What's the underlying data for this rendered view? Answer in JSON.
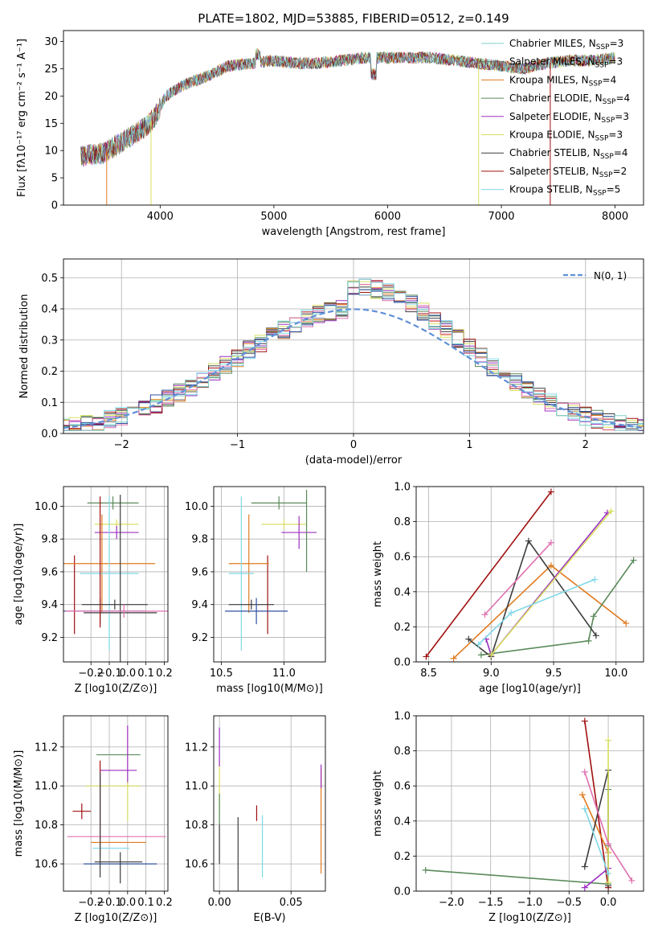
{
  "figure_title": "PLATE=1802, MJD=53885, FIBERID=0512, z=0.149",
  "colors": [
    "#7fcfc8",
    "#6a6a6a",
    "#e07a1f",
    "#5a8a5a",
    "#9b30c0",
    "#d8e060",
    "#3c3c3c",
    "#a01010",
    "#7fd8e8",
    "#e070b0",
    "#3050a0"
  ],
  "chart_data": [
    {
      "id": "spectrum",
      "type": "line",
      "xlabel": "wavelength [Angstrom, rest frame]",
      "ylabel": "Flux [fλ10⁻¹⁷ erg cm⁻² s⁻¹ A⁻¹]",
      "xlim": [
        3150,
        8250
      ],
      "ylim": [
        0,
        32
      ],
      "xticks": [
        4000,
        5000,
        6000,
        7000,
        8000
      ],
      "yticks": [
        0,
        5,
        10,
        15,
        20,
        25,
        30
      ],
      "continuum": {
        "x": [
          3300,
          3500,
          3700,
          3850,
          3950,
          4050,
          4200,
          4400,
          4600,
          4800,
          5000,
          5200,
          5400,
          5600,
          5800,
          6000,
          6200,
          6400,
          6600,
          6800,
          7000,
          7200,
          7400,
          7600,
          7800,
          8000
        ],
        "y": [
          9,
          9.5,
          12,
          14,
          16,
          20,
          22,
          23.5,
          25.5,
          26,
          26.5,
          26,
          26,
          26.5,
          27,
          27,
          27,
          27,
          26.5,
          26,
          25.5,
          25,
          26,
          26.5,
          26.5,
          27
        ]
      },
      "legend": [
        {
          "name": "Chabrier MILES",
          "nssp": 3
        },
        {
          "name": "Salpeter MILES",
          "nssp": 3
        },
        {
          "name": "Kroupa MILES",
          "nssp": 4
        },
        {
          "name": "Chabrier ELODIE",
          "nssp": 4
        },
        {
          "name": "Salpeter ELODIE",
          "nssp": 3
        },
        {
          "name": "Kroupa ELODIE",
          "nssp": 3
        },
        {
          "name": "Chabrier STELIB",
          "nssp": 4
        },
        {
          "name": "Salpeter STELIB",
          "nssp": 2
        },
        {
          "name": "Kroupa STELIB",
          "nssp": 5
        }
      ],
      "legend_nssp_label": "N",
      "legend_nssp_sub": "SSP",
      "legend_loc": "upper right",
      "model_cutoffs": [
        3530,
        3920,
        6800,
        7430
      ]
    },
    {
      "id": "residuals",
      "type": "histogram",
      "xlabel": "(data-model)/error",
      "ylabel": "Normed distribution",
      "xlim": [
        -2.5,
        2.5
      ],
      "ylim": [
        0,
        0.56
      ],
      "xticks": [
        -2,
        -1,
        0,
        1,
        2
      ],
      "yticks": [
        0.0,
        0.1,
        0.2,
        0.3,
        0.4,
        0.5
      ],
      "bin_width": 0.1,
      "grid": true,
      "legend": [
        {
          "name": "N(0, 1)",
          "style": "dashed",
          "color": "#6090d8"
        }
      ],
      "legend_loc": "upper right"
    },
    {
      "id": "age_vs_Z",
      "type": "errorbar",
      "xlabel": "Z [log10(Z/Z⊙)]",
      "ylabel": "age [log10(age/yr)]",
      "xlim": [
        -0.35,
        0.22
      ],
      "ylim": [
        9.05,
        10.12
      ],
      "xticks": [
        -0.2,
        -0.1,
        0.0,
        0.1,
        0.2
      ],
      "yticks": [
        9.2,
        9.4,
        9.6,
        9.8,
        10.0
      ],
      "points": [
        {
          "x": -0.08,
          "y": 10.02,
          "xerr": 0.14,
          "yerr": 0.04,
          "c": 3
        },
        {
          "x": -0.06,
          "y": 9.89,
          "xerr": 0.12,
          "yerr": 0.03,
          "c": 5
        },
        {
          "x": -0.06,
          "y": 9.84,
          "xerr": 0.12,
          "yerr": 0.04,
          "c": 4
        },
        {
          "x": -0.29,
          "y": 9.46,
          "xerr": 0.0,
          "yerr": 0.24,
          "c": 7
        },
        {
          "x": -0.14,
          "y": 9.65,
          "xerr": 0.29,
          "yerr": 0.3,
          "c": 2
        },
        {
          "x": -0.1,
          "y": 9.59,
          "xerr": 0.16,
          "yerr": 0.47,
          "c": 8
        },
        {
          "x": -0.07,
          "y": 9.4,
          "xerr": 0.18,
          "yerr": 0.03,
          "c": 6
        },
        {
          "x": -0.04,
          "y": 9.35,
          "xerr": 0.2,
          "yerr": 0.72,
          "c": 6
        },
        {
          "x": -0.15,
          "y": 9.36,
          "xerr": 0.25,
          "yerr": 0.08,
          "c": 10
        },
        {
          "x": -0.02,
          "y": 9.36,
          "xerr": 0.32,
          "yerr": 0.04,
          "c": 9
        },
        {
          "x": -0.15,
          "y": 9.66,
          "xerr": 0.0,
          "yerr": 0.4,
          "c": 7
        }
      ]
    },
    {
      "id": "age_vs_mass",
      "type": "errorbar",
      "xlabel": "mass [log10(M/M⊙)]",
      "ylabel": "",
      "xlim": [
        10.44,
        11.33
      ],
      "ylim": [
        9.05,
        10.12
      ],
      "xticks": [
        10.5,
        11.0
      ],
      "yticks": [
        9.2,
        9.4,
        9.6,
        9.8,
        10.0
      ],
      "points": [
        {
          "x": 10.96,
          "y": 10.02,
          "xerr": 0.22,
          "yerr": 0.04,
          "c": 3
        },
        {
          "x": 11.0,
          "y": 9.89,
          "xerr": 0.18,
          "yerr": 0.03,
          "c": 5
        },
        {
          "x": 11.12,
          "y": 9.84,
          "xerr": 0.14,
          "yerr": 0.1,
          "c": 4
        },
        {
          "x": 10.87,
          "y": 9.46,
          "xerr": 0.0,
          "yerr": 0.24,
          "c": 7
        },
        {
          "x": 10.72,
          "y": 9.65,
          "xerr": 0.16,
          "yerr": 0.3,
          "c": 2
        },
        {
          "x": 10.66,
          "y": 9.59,
          "xerr": 0.1,
          "yerr": 0.47,
          "c": 8
        },
        {
          "x": 10.74,
          "y": 9.4,
          "xerr": 0.18,
          "yerr": 0.03,
          "c": 6
        },
        {
          "x": 10.6,
          "y": 9.4,
          "xerr": 0.1,
          "yerr": 0.7,
          "c": 11
        },
        {
          "x": 10.78,
          "y": 9.36,
          "xerr": 0.25,
          "yerr": 0.08,
          "c": 10
        },
        {
          "x": 11.18,
          "y": 9.85,
          "xerr": 0.0,
          "yerr": 0.25,
          "c": 3
        }
      ]
    },
    {
      "id": "weight_vs_age",
      "type": "line",
      "xlabel": "age [log10(age/yr)]",
      "ylabel": "mass weight",
      "xlim": [
        8.4,
        10.22
      ],
      "ylim": [
        0.0,
        1.0
      ],
      "xticks": [
        8.5,
        9.0,
        9.5,
        10.0
      ],
      "yticks": [
        0.0,
        0.2,
        0.4,
        0.6,
        0.8,
        1.0
      ],
      "grid": true,
      "series": [
        {
          "c": 7,
          "x": [
            8.48,
            9.48
          ],
          "y": [
            0.03,
            0.97
          ]
        },
        {
          "c": 2,
          "x": [
            8.7,
            9.48,
            10.08
          ],
          "y": [
            0.02,
            0.55,
            0.22
          ]
        },
        {
          "c": 3,
          "x": [
            8.92,
            9.78,
            9.82,
            10.14
          ],
          "y": [
            0.04,
            0.12,
            0.26,
            0.58
          ]
        },
        {
          "c": 6,
          "x": [
            8.82,
            9.0,
            9.3,
            9.84
          ],
          "y": [
            0.13,
            0.03,
            0.69,
            0.15
          ]
        },
        {
          "c": 4,
          "x": [
            8.96,
            9.0,
            9.93
          ],
          "y": [
            0.13,
            0.04,
            0.85
          ]
        },
        {
          "c": 5,
          "x": [
            9.0,
            9.96
          ],
          "y": [
            0.04,
            0.86
          ]
        },
        {
          "c": 9,
          "x": [
            8.95,
            9.48
          ],
          "y": [
            0.27,
            0.68
          ]
        },
        {
          "c": 8,
          "x": [
            8.9,
            9.16,
            9.83
          ],
          "y": [
            0.1,
            0.28,
            0.47
          ]
        }
      ]
    },
    {
      "id": "mass_vs_Z",
      "type": "errorbar",
      "xlabel": "Z [log10(Z/Z⊙)]",
      "ylabel": "mass [log10(M/M⊙)]",
      "xlim": [
        -0.35,
        0.22
      ],
      "ylim": [
        10.46,
        11.36
      ],
      "xticks": [
        -0.2,
        -0.1,
        0.0,
        0.1,
        0.2
      ],
      "yticks": [
        10.6,
        10.8,
        11.0,
        11.2
      ],
      "points": [
        {
          "x": -0.05,
          "y": 11.16,
          "xerr": 0.12,
          "yerr": 0.0,
          "c": 3
        },
        {
          "x": -0.05,
          "y": 11.08,
          "xerr": 0.1,
          "yerr": 0.0,
          "c": 4
        },
        {
          "x": -0.08,
          "y": 11.0,
          "xerr": 0.15,
          "yerr": 0.0,
          "c": 5
        },
        {
          "x": 0.0,
          "y": 11.16,
          "xerr": 0.0,
          "yerr": 0.15,
          "c": 4
        },
        {
          "x": 0.0,
          "y": 10.92,
          "xerr": 0.0,
          "yerr": 0.1,
          "c": 5
        },
        {
          "x": -0.25,
          "y": 10.87,
          "xerr": 0.05,
          "yerr": 0.04,
          "c": 7
        },
        {
          "x": -0.15,
          "y": 10.88,
          "xerr": 0.0,
          "yerr": 0.25,
          "c": 7
        },
        {
          "x": -0.06,
          "y": 10.74,
          "xerr": 0.27,
          "yerr": 0.0,
          "c": 9
        },
        {
          "x": -0.05,
          "y": 10.71,
          "xerr": 0.15,
          "yerr": 0.0,
          "c": 2
        },
        {
          "x": -0.09,
          "y": 10.68,
          "xerr": 0.1,
          "yerr": 0.0,
          "c": 8
        },
        {
          "x": -0.05,
          "y": 10.61,
          "xerr": 0.13,
          "yerr": 0.0,
          "c": 6
        },
        {
          "x": -0.04,
          "y": 10.6,
          "xerr": 0.2,
          "yerr": 0.0,
          "c": 10
        },
        {
          "x": -0.04,
          "y": 10.58,
          "xerr": 0.0,
          "yerr": 0.08,
          "c": 6
        },
        {
          "x": -0.15,
          "y": 10.8,
          "xerr": 0.0,
          "yerr": 0.27,
          "c": 6
        }
      ]
    },
    {
      "id": "mass_vs_EBV",
      "type": "errorbar",
      "xlabel": "E(B-V)",
      "ylabel": "",
      "xlim": [
        -0.004,
        0.074
      ],
      "ylim": [
        10.46,
        11.36
      ],
      "xticks": [
        0.0,
        0.05
      ],
      "xticklabels": [
        "0.00",
        "0.05"
      ],
      "yticks": [
        10.6,
        10.8,
        11.0,
        11.2
      ],
      "points": [
        {
          "x": 0.0,
          "y": 11.2,
          "yerr": 0.1,
          "c": 4
        },
        {
          "x": 0.0,
          "y": 10.98,
          "yerr": 0.12,
          "c": 5
        },
        {
          "x": 0.0,
          "y": 10.88,
          "yerr": 0.08,
          "c": 3
        },
        {
          "x": 0.0,
          "y": 10.7,
          "yerr": 0.1,
          "c": 6
        },
        {
          "x": 0.013,
          "y": 10.64,
          "yerr": 0.2,
          "c": 6
        },
        {
          "x": 0.026,
          "y": 10.86,
          "yerr": 0.04,
          "c": 7
        },
        {
          "x": 0.03,
          "y": 10.69,
          "yerr": 0.16,
          "c": 8
        },
        {
          "x": 0.071,
          "y": 10.82,
          "yerr": 0.27,
          "c": 2
        },
        {
          "x": 0.071,
          "y": 11.05,
          "yerr": 0.06,
          "c": 4
        }
      ]
    },
    {
      "id": "weight_vs_Z",
      "type": "line",
      "xlabel": "Z [log10(Z/Z⊙)]",
      "ylabel": "mass weight",
      "xlim": [
        -2.45,
        0.45
      ],
      "ylim": [
        0.0,
        1.0
      ],
      "xticks": [
        -2.0,
        -1.5,
        -1.0,
        -0.5,
        0.0
      ],
      "yticks": [
        0.0,
        0.2,
        0.4,
        0.6,
        0.8,
        1.0
      ],
      "grid": true,
      "series": [
        {
          "c": 7,
          "x": [
            -0.3,
            0.0
          ],
          "y": [
            0.97,
            0.02
          ]
        },
        {
          "c": 2,
          "x": [
            -0.33,
            0.0
          ],
          "y": [
            0.55,
            0.22
          ]
        },
        {
          "c": 3,
          "x": [
            -2.33,
            0.0,
            0.0,
            0.0
          ],
          "y": [
            0.12,
            0.04,
            0.26,
            0.58
          ]
        },
        {
          "c": 6,
          "x": [
            -0.3,
            0.0,
            0.0
          ],
          "y": [
            0.14,
            0.69,
            0.03
          ]
        },
        {
          "c": 4,
          "x": [
            -0.3,
            0.0
          ],
          "y": [
            0.02,
            0.13
          ]
        },
        {
          "c": 5,
          "x": [
            0.0,
            0.0
          ],
          "y": [
            0.05,
            0.86
          ]
        },
        {
          "c": 9,
          "x": [
            -0.3,
            0.0,
            0.3
          ],
          "y": [
            0.68,
            0.27,
            0.06
          ]
        },
        {
          "c": 8,
          "x": [
            -0.3,
            0.0
          ],
          "y": [
            0.47,
            0.1
          ]
        }
      ]
    }
  ]
}
